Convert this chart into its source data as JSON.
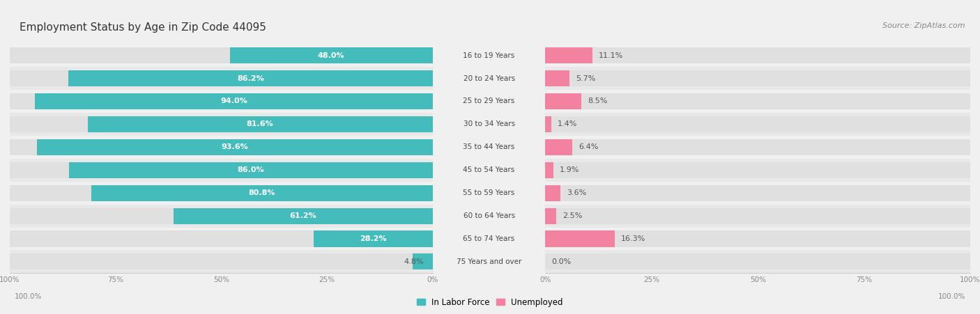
{
  "title": "Employment Status by Age in Zip Code 44095",
  "source": "Source: ZipAtlas.com",
  "categories": [
    "16 to 19 Years",
    "20 to 24 Years",
    "25 to 29 Years",
    "30 to 34 Years",
    "35 to 44 Years",
    "45 to 54 Years",
    "55 to 59 Years",
    "60 to 64 Years",
    "65 to 74 Years",
    "75 Years and over"
  ],
  "labor_force": [
    48.0,
    86.2,
    94.0,
    81.6,
    93.6,
    86.0,
    80.8,
    61.2,
    28.2,
    4.8
  ],
  "unemployed": [
    11.1,
    5.7,
    8.5,
    1.4,
    6.4,
    1.9,
    3.6,
    2.5,
    16.3,
    0.0
  ],
  "labor_force_color": "#45bcbc",
  "unemployed_color": "#f282a0",
  "background_color": "#f0f0f0",
  "bar_bg_color": "#e0e0e0",
  "row_bg_even": "#e8e8e8",
  "row_bg_odd": "#f0f0f0",
  "title_fontsize": 11,
  "source_fontsize": 8,
  "label_fontsize": 8,
  "bar_height": 0.7,
  "legend_labels": [
    "In Labor Force",
    "Unemployed"
  ],
  "left_axis_end_label": "100.0%",
  "right_axis_end_label": "100.0%"
}
